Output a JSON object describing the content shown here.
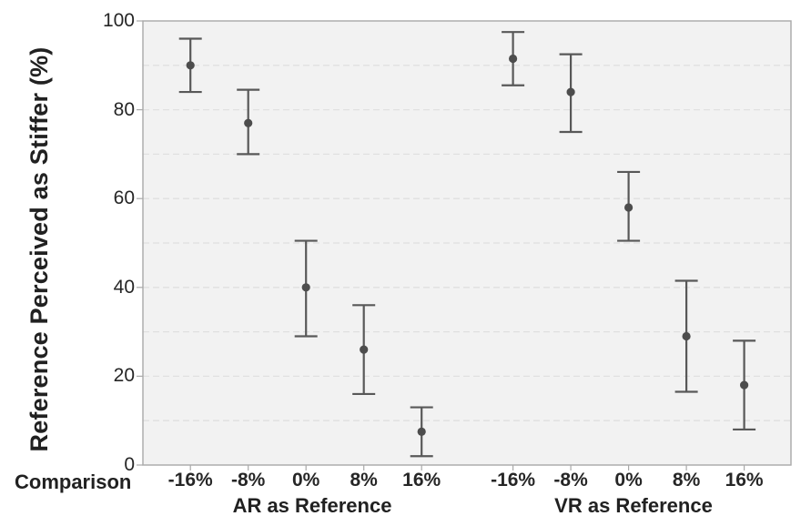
{
  "chart_data": {
    "type": "scatter",
    "subtype": "point_estimates_with_error_bars",
    "title": "",
    "ylabel": "Reference Perceived as Stiffer (%)",
    "xlabel": "Comparison",
    "ylim": [
      0,
      100
    ],
    "y_ticks": [
      0,
      20,
      40,
      60,
      80,
      100
    ],
    "gridline_values": [
      10,
      20,
      30,
      40,
      50,
      60,
      70,
      80,
      90
    ],
    "grid_style": "dashed",
    "legend": "none",
    "categories": [
      "-16%",
      "-8%",
      "0%",
      "8%",
      "16%"
    ],
    "groups": [
      {
        "label": "AR as Reference",
        "values": [
          90,
          77,
          40,
          26,
          7.5
        ],
        "ci_low": [
          84,
          70,
          29,
          16,
          2
        ],
        "ci_high": [
          96,
          84.5,
          50.5,
          36,
          13
        ]
      },
      {
        "label": "VR as Reference",
        "values": [
          91.5,
          84,
          58,
          29,
          18
        ],
        "ci_low": [
          85.5,
          75,
          50.5,
          16.5,
          8
        ],
        "ci_high": [
          97.5,
          92.5,
          66,
          41.5,
          28
        ]
      }
    ],
    "colors": {
      "marker": "#4d4d4d",
      "error_bar": "#585858",
      "plot_background": "#f2f2f2",
      "gridline": "#e0e0e0",
      "border": "#a9a9a9",
      "text": "#262626"
    }
  }
}
